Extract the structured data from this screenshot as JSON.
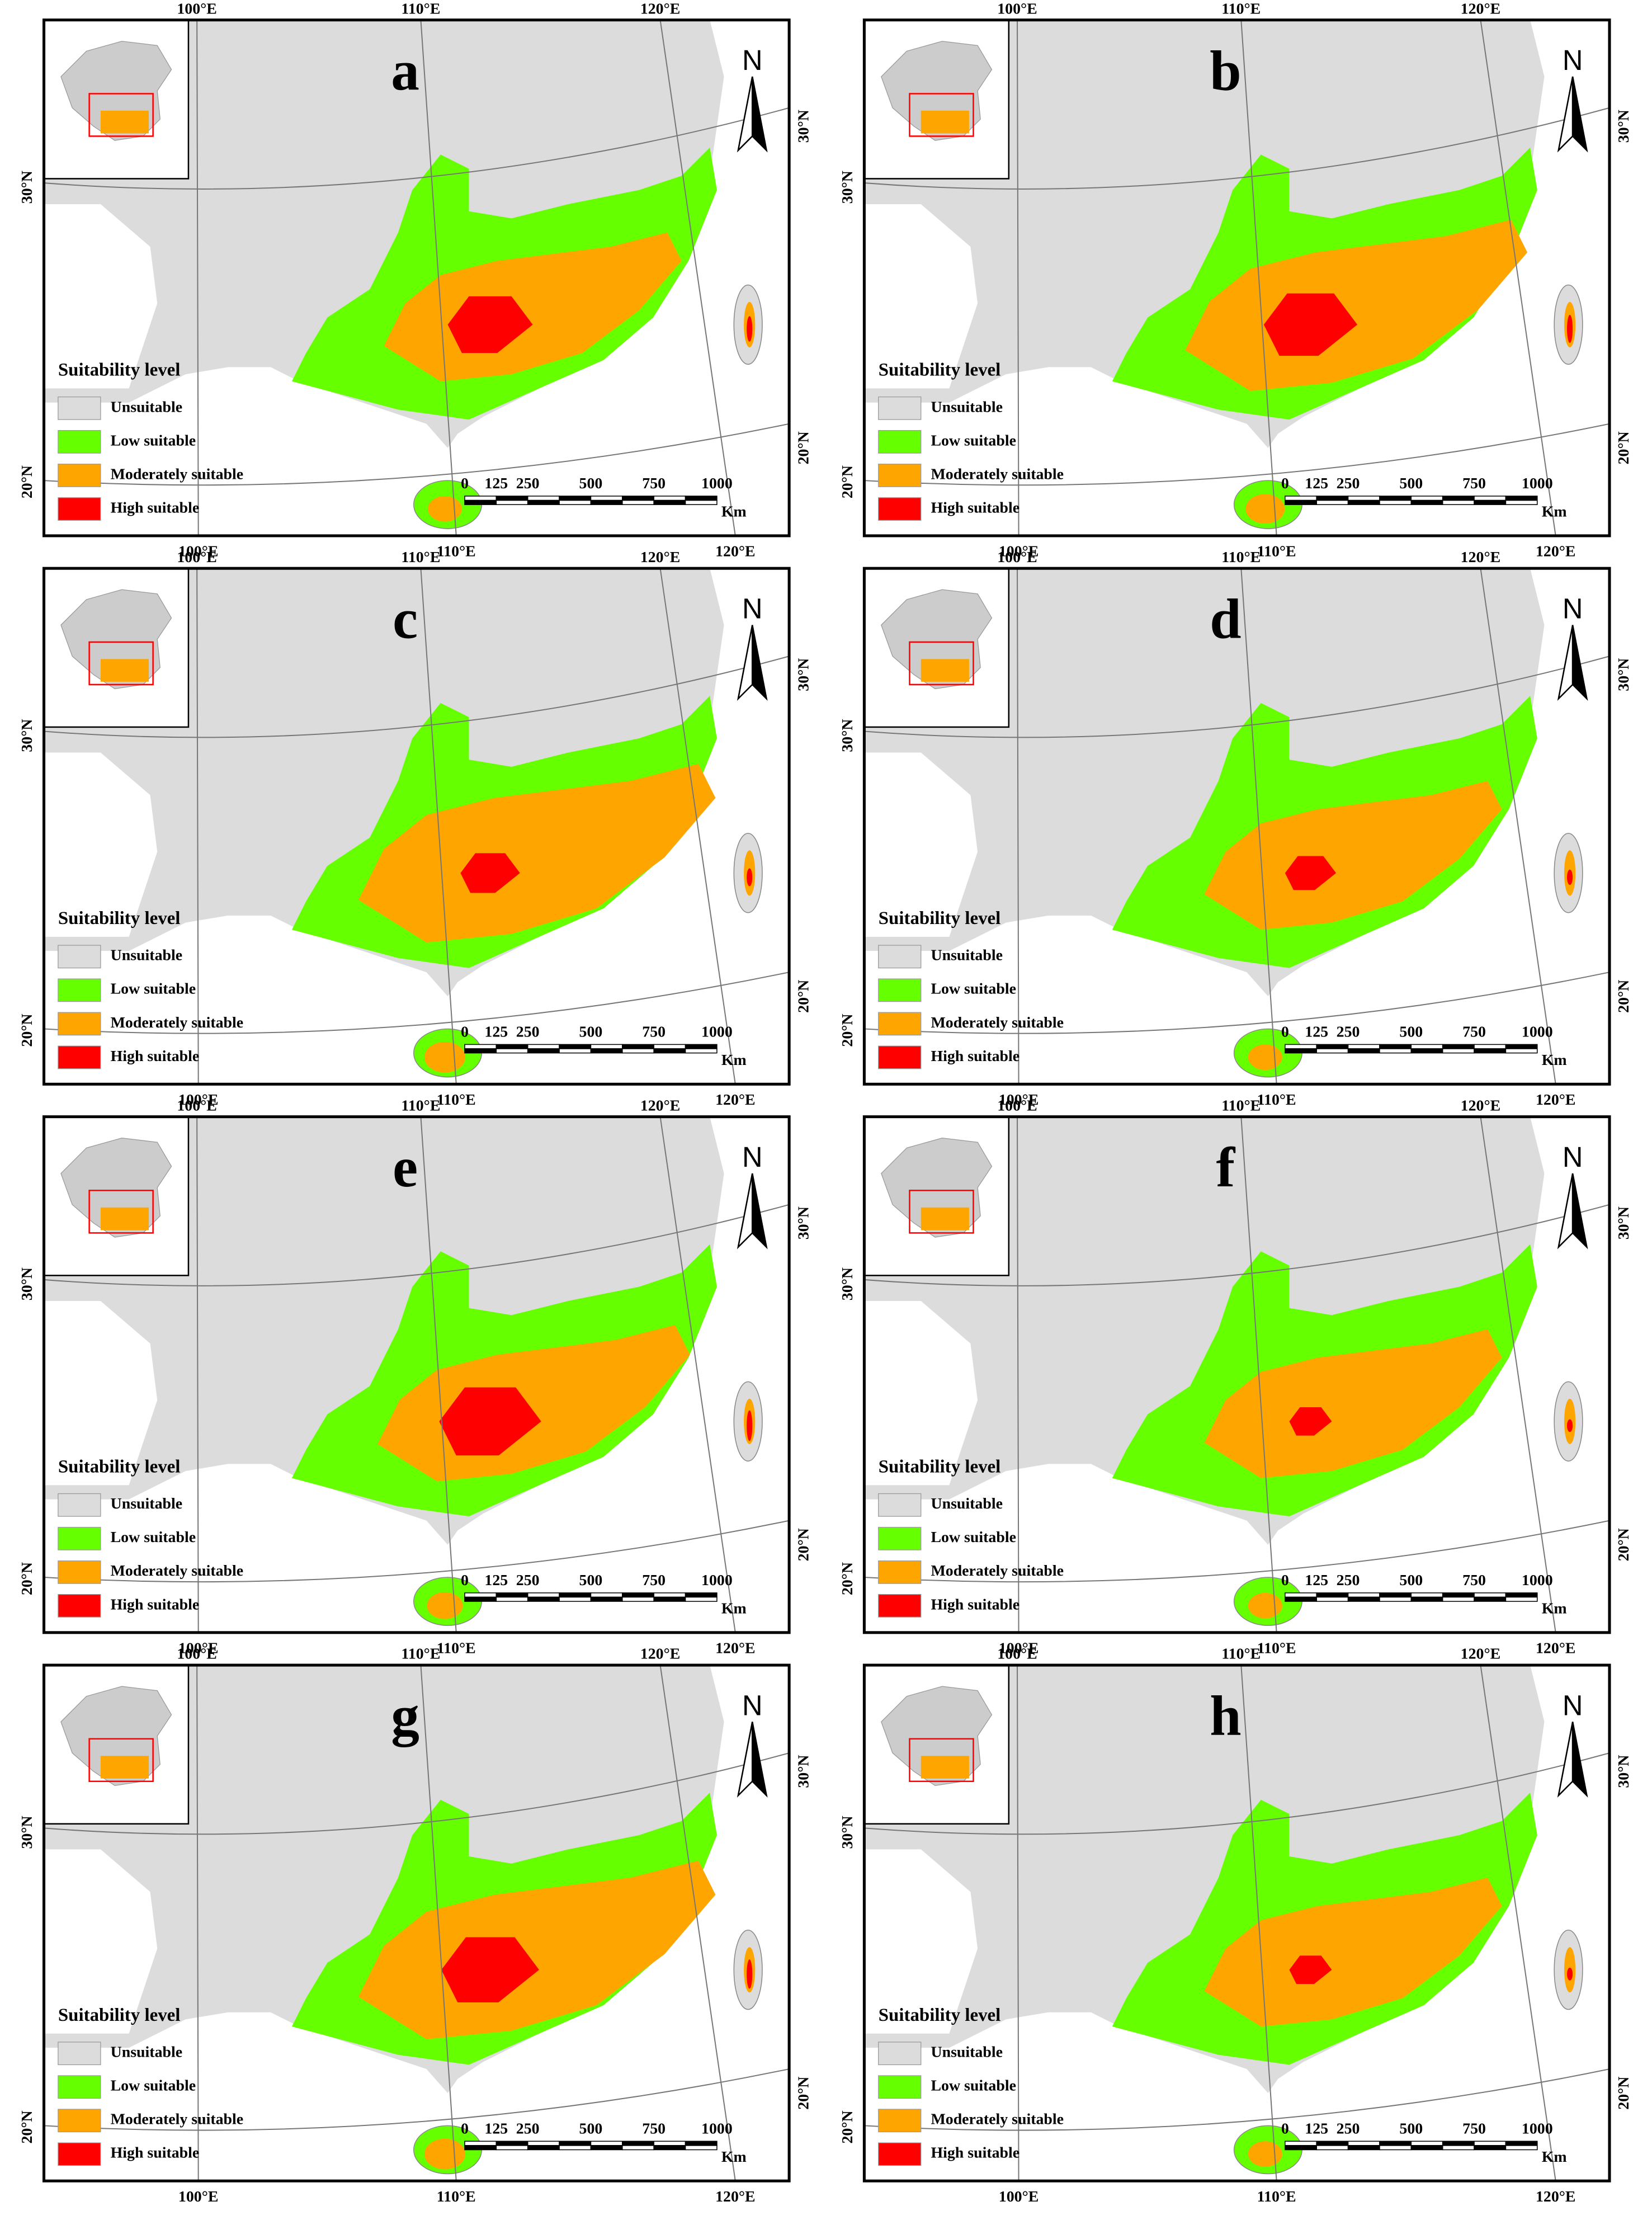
{
  "panels": [
    {
      "label": "a"
    },
    {
      "label": "b"
    },
    {
      "label": "c"
    },
    {
      "label": "d"
    },
    {
      "label": "e"
    },
    {
      "label": "f"
    },
    {
      "label": "g"
    },
    {
      "label": "h"
    }
  ],
  "graticule": {
    "top_labels": [
      "100°E",
      "110°E",
      "120°E"
    ],
    "bottom_labels": [
      "100°E",
      "110°E",
      "120°E"
    ],
    "left_labels": [
      "30°N",
      "20°N"
    ],
    "right_labels": [
      "30°N",
      "20°N"
    ]
  },
  "north": "N",
  "legend": {
    "title": "Suitability level",
    "items": [
      {
        "label": "Unsuitable",
        "color": "#dcdcdc"
      },
      {
        "label": "Low suitable",
        "color": "#66ff00"
      },
      {
        "label": "Moderately suitable",
        "color": "#ffa500"
      },
      {
        "label": "High suitable",
        "color": "#ff0000"
      }
    ]
  },
  "scale_bar": {
    "ticks": [
      0,
      125,
      250,
      500,
      750,
      1000
    ],
    "unit": "Km"
  }
}
